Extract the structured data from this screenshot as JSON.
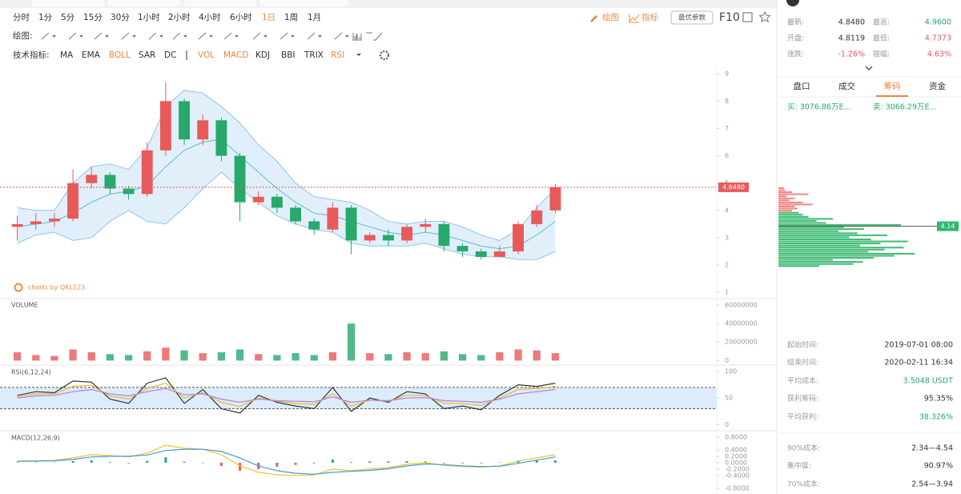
{
  "toolbar": {
    "timeframes": [
      "分时",
      "1分",
      "5分",
      "15分",
      "30分",
      "1小时",
      "2小时",
      "4小时",
      "6小时",
      "1日",
      "1周",
      "1月"
    ],
    "active_timeframe": 9,
    "draw_button": "绘图",
    "indicator_button": "指标",
    "optimize_button": "最优参数",
    "f10": "F10",
    "drawing_label": "绘图:",
    "indicator_label": "技术指标:",
    "indicators": [
      {
        "label": "MA",
        "active": false
      },
      {
        "label": "EMA",
        "active": false
      },
      {
        "label": "BOLL",
        "active": true
      },
      {
        "label": "SAR",
        "active": false
      },
      {
        "label": "DC",
        "active": false
      },
      {
        "label": "VOL",
        "active": true
      },
      {
        "label": "MACD",
        "active": true
      },
      {
        "label": "KDJ",
        "active": false
      },
      {
        "label": "BBI",
        "active": false
      },
      {
        "label": "TRIX",
        "active": false
      },
      {
        "label": "RSI",
        "active": true
      }
    ]
  },
  "chart_data": [
    {
      "type": "candlestick",
      "watermark": "charts by QKL123",
      "up_color": "#e8595a",
      "down_color": "#27a96b",
      "band_color": "#d7eaf9",
      "band_line_color": "#8ec5ee",
      "mid_color": "#55c1c7",
      "open": [
        3.4,
        3.5,
        3.6,
        3.7,
        5.0,
        5.3,
        4.8,
        4.6,
        6.2,
        8.0,
        6.6,
        7.3,
        6.0,
        4.3,
        4.5,
        4.1,
        3.6,
        3.3,
        4.1,
        2.9,
        3.1,
        2.9,
        3.4,
        3.5,
        2.7,
        2.5,
        2.3,
        2.5,
        3.5,
        4.0
      ],
      "high": [
        3.8,
        3.9,
        3.9,
        5.5,
        5.6,
        5.4,
        4.9,
        6.5,
        8.7,
        8.1,
        7.5,
        7.4,
        6.1,
        4.7,
        4.6,
        4.2,
        3.7,
        4.3,
        4.2,
        3.2,
        3.3,
        3.5,
        3.7,
        3.6,
        2.8,
        2.6,
        2.7,
        3.6,
        4.2,
        4.96
      ],
      "low": [
        2.9,
        3.3,
        3.4,
        3.6,
        4.8,
        4.6,
        4.4,
        4.5,
        6.0,
        6.4,
        6.4,
        5.8,
        3.6,
        4.2,
        3.9,
        3.5,
        3.1,
        3.2,
        2.4,
        2.8,
        2.7,
        2.8,
        3.2,
        2.5,
        2.3,
        2.2,
        2.3,
        2.4,
        3.4,
        3.9
      ],
      "close": [
        3.5,
        3.6,
        3.7,
        5.0,
        5.3,
        4.8,
        4.6,
        6.2,
        8.0,
        6.6,
        7.3,
        6.0,
        4.3,
        4.5,
        4.1,
        3.6,
        3.3,
        4.1,
        2.9,
        3.1,
        2.9,
        3.4,
        3.5,
        2.7,
        2.5,
        2.3,
        2.5,
        3.5,
        4.0,
        4.848
      ],
      "upper": [
        4.1,
        4.0,
        4.0,
        5.0,
        5.6,
        5.7,
        5.5,
        6.3,
        7.8,
        8.4,
        8.3,
        7.8,
        7.2,
        6.4,
        5.8,
        5.0,
        4.5,
        4.4,
        4.3,
        4.0,
        3.6,
        3.5,
        3.6,
        3.6,
        3.4,
        3.1,
        2.9,
        3.3,
        4.1,
        4.8
      ],
      "mid": [
        3.4,
        3.5,
        3.6,
        3.9,
        4.3,
        4.6,
        4.7,
        4.9,
        5.6,
        6.2,
        6.5,
        6.6,
        6.0,
        5.4,
        4.8,
        4.3,
        3.9,
        3.8,
        3.6,
        3.4,
        3.2,
        3.1,
        3.2,
        3.1,
        2.9,
        2.7,
        2.6,
        2.7,
        3.1,
        3.6
      ],
      "lower": [
        2.8,
        3.1,
        3.2,
        2.9,
        3.0,
        3.6,
        4.0,
        3.6,
        3.5,
        4.1,
        4.8,
        5.4,
        4.8,
        4.3,
        3.8,
        3.5,
        3.3,
        3.2,
        2.8,
        2.7,
        2.7,
        2.7,
        2.8,
        2.6,
        2.4,
        2.3,
        2.3,
        2.2,
        2.2,
        2.5
      ],
      "ylim": [
        0.8,
        9.3
      ],
      "yticks": [
        1,
        2,
        3,
        4,
        5,
        6,
        7,
        8,
        9
      ],
      "last_price": {
        "value": 4.848,
        "label": "4.8480"
      }
    },
    {
      "type": "bar",
      "title": "VOLUME",
      "values": [
        9000000,
        6000000,
        5000000,
        12000000,
        9000000,
        7000000,
        6000000,
        10000000,
        14000000,
        11000000,
        8000000,
        9000000,
        12000000,
        7000000,
        6000000,
        8000000,
        6000000,
        9000000,
        40000000,
        8000000,
        7000000,
        9000000,
        8000000,
        10000000,
        7000000,
        6000000,
        9000000,
        12000000,
        11000000,
        8000000
      ],
      "ylim": [
        -4000000,
        66000000
      ],
      "yticks": [
        0,
        20000000,
        40000000,
        60000000
      ]
    },
    {
      "type": "line",
      "title": "RSI(6,12,24)",
      "series": [
        {
          "color": "#333333",
          "values": [
            55,
            62,
            60,
            82,
            80,
            48,
            40,
            78,
            88,
            40,
            66,
            30,
            22,
            55,
            42,
            35,
            30,
            70,
            25,
            50,
            42,
            62,
            58,
            30,
            35,
            28,
            55,
            75,
            72,
            78
          ]
        },
        {
          "color": "#e8b923",
          "values": [
            52,
            58,
            58,
            72,
            74,
            54,
            48,
            68,
            78,
            50,
            60,
            42,
            34,
            50,
            44,
            40,
            38,
            58,
            35,
            46,
            44,
            55,
            55,
            40,
            40,
            36,
            50,
            66,
            68,
            72
          ]
        },
        {
          "color": "#b07fe0",
          "values": [
            50,
            54,
            55,
            62,
            66,
            58,
            54,
            62,
            68,
            56,
            58,
            48,
            42,
            48,
            45,
            44,
            43,
            52,
            42,
            46,
            45,
            50,
            51,
            45,
            44,
            42,
            48,
            58,
            62,
            66
          ]
        }
      ],
      "band": [
        30,
        70
      ],
      "band_color": "#dcecfb",
      "ylim": [
        -10,
        109
      ],
      "yticks": [
        0,
        50,
        100
      ]
    },
    {
      "type": "macd",
      "title": "MACD(12,26,9)",
      "series": [
        {
          "color": "#f2c12e",
          "values": [
            0.05,
            0.06,
            0.07,
            0.15,
            0.25,
            0.22,
            0.18,
            0.3,
            0.55,
            0.45,
            0.42,
            0.25,
            -0.1,
            -0.3,
            -0.38,
            -0.4,
            -0.38,
            -0.2,
            -0.25,
            -0.2,
            -0.15,
            -0.05,
            0.0,
            -0.08,
            -0.12,
            -0.14,
            -0.1,
            0.05,
            0.15,
            0.25
          ]
        },
        {
          "color": "#3b9fd6",
          "values": [
            0.04,
            0.05,
            0.06,
            0.1,
            0.18,
            0.2,
            0.2,
            0.24,
            0.38,
            0.42,
            0.42,
            0.35,
            0.15,
            -0.1,
            -0.25,
            -0.33,
            -0.36,
            -0.3,
            -0.27,
            -0.24,
            -0.19,
            -0.1,
            -0.04,
            -0.06,
            -0.1,
            -0.12,
            -0.11,
            -0.02,
            0.08,
            0.18
          ]
        }
      ],
      "histogram": [
        0.01,
        0.01,
        0.01,
        0.05,
        0.07,
        0.02,
        -0.02,
        0.06,
        0.17,
        0.03,
        0,
        -0.1,
        -0.25,
        -0.2,
        -0.13,
        -0.07,
        -0.02,
        0.1,
        0.02,
        0.04,
        0.04,
        0.05,
        0.04,
        -0.02,
        -0.02,
        -0.02,
        0.01,
        0.07,
        0.07,
        0.07
      ],
      "ylim": [
        -0.98,
        0.95
      ],
      "yticks": [
        {
          "value": 0.8,
          "label": "0.8000"
        },
        {
          "value": 0.4,
          "label": "0.4000"
        },
        {
          "value": 0.2,
          "label": "0.2000"
        },
        {
          "value": 0,
          "label": "0.0000"
        },
        {
          "value": -0.2,
          "label": "-0.2000"
        },
        {
          "value": -0.4,
          "label": "-0.4000"
        },
        {
          "value": -0.8,
          "label": "-0.8000"
        }
      ]
    }
  ],
  "panel": {
    "quote": [
      {
        "label": "最新:",
        "value": "4.8480",
        "color": "#333333"
      },
      {
        "label": "最高:",
        "value": "4.9600",
        "color": "#27a96b"
      },
      {
        "label": "开盘:",
        "value": "4.8119",
        "color": "#333333"
      },
      {
        "label": "最低:",
        "value": "4.7373",
        "color": "#e8595a"
      },
      {
        "label": "涨跌:",
        "value": "-1.26%",
        "color": "#e8595a"
      },
      {
        "label": "振幅:",
        "value": "4.63%",
        "color": "#e8595a"
      }
    ],
    "tabs": [
      "盘口",
      "成交",
      "筹码",
      "资金"
    ],
    "active_tab": 2,
    "buy": "买: 3076.86万E...",
    "sell": "卖: 3066.29万E...",
    "chips": {
      "ylim": [
        0.65,
        11.97
      ],
      "xlim": [
        0,
        100
      ],
      "up_color": "#f08585",
      "down_color": "#3dbb73",
      "prices": [
        2.2,
        2.3,
        2.4,
        2.5,
        2.6,
        2.7,
        2.8,
        2.9,
        3.0,
        3.1,
        3.2,
        3.3,
        3.4,
        3.5,
        3.6,
        3.7,
        3.8,
        3.9,
        4.0,
        4.1,
        4.2,
        4.3,
        4.4,
        4.5,
        4.6,
        4.7,
        4.8,
        4.9,
        5.0,
        5.1,
        5.2,
        5.3,
        5.4,
        5.5,
        5.6,
        5.7,
        5.8,
        5.9,
        6.0
      ],
      "amounts": [
        30,
        55,
        62,
        40,
        70,
        85,
        100,
        66,
        78,
        92,
        60,
        75,
        95,
        68,
        52,
        80,
        58,
        44,
        63,
        48,
        90,
        35,
        28,
        40,
        22,
        18,
        15,
        10,
        14,
        12,
        25,
        18,
        8,
        12,
        6,
        22,
        10,
        5,
        4
      ],
      "marker": {
        "value": 4.14,
        "label": "4.14"
      }
    },
    "stats": [
      {
        "label": "起始时间:",
        "value": "2019-07-01 08:00",
        "color": "#333333"
      },
      {
        "label": "结束时间:",
        "value": "2020-02-11 16:34",
        "color": "#333333"
      },
      {
        "label": "平均成本:",
        "value": "3.5048 USDT",
        "color": "#27a96b"
      },
      {
        "label": "获利筹码:",
        "value": "95.35%",
        "color": "#333333"
      },
      {
        "label": "平均获利:",
        "value": "38.326%",
        "color": "#27a96b"
      }
    ],
    "stats2": [
      {
        "label": "90%成本:",
        "value": "2.34—4.54",
        "color": "#333333"
      },
      {
        "label": "集中度:",
        "value": "90.97%",
        "color": "#333333"
      },
      {
        "label": "70%成本:",
        "value": "2.54—3.94",
        "color": "#333333"
      }
    ]
  }
}
